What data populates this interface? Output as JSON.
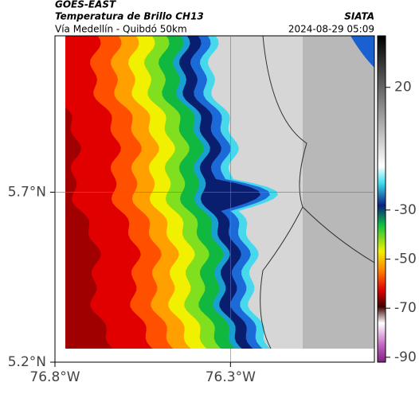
{
  "header": {
    "source": "GOES-EAST",
    "title": "Temperatura de Brillo CH13",
    "subtitle": "Vía Medellín - Quibdó 50km",
    "credit": "SIATA",
    "timestamp": "2024-08-29 05:09"
  },
  "map": {
    "xlim": [
      -76.8,
      -75.89
    ],
    "ylim": [
      5.2,
      6.16
    ],
    "xticks": [
      {
        "value": -76.8,
        "label": "76.8°W"
      },
      {
        "value": -76.3,
        "label": "76.3°W"
      }
    ],
    "yticks": [
      {
        "value": 5.7,
        "label": "5.7°N"
      },
      {
        "value": 5.2,
        "label": "5.2°N"
      }
    ]
  },
  "colorbar": {
    "lim": [
      -92,
      41
    ],
    "ticks": [
      20,
      -30,
      -50,
      -70,
      -90
    ]
  }
}
